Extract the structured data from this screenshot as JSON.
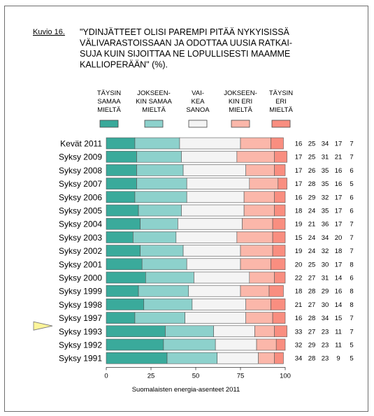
{
  "figure": {
    "label": "Kuvio 16.",
    "title_lines": [
      "\"YDINJÄTTEET OLISI PAREMPI PITÄÄ NYKYISISSÄ",
      "VÄLIVARASTOISSAAN JA ODOTTAA UUSIA RATKAI-",
      "SUJA KUIN SIJOITTAA NE LOPULLISESTI MAAMME",
      "KALLIOPERÄÄN\" (%)."
    ],
    "source": "Suomalaisten energia-asenteet 2011"
  },
  "chart_data": {
    "type": "bar",
    "orientation": "horizontal",
    "stacked": true,
    "categories": [
      "Kevät 2011",
      "Syksy 2009",
      "Syksy 2008",
      "Syksy 2007",
      "Syksy 2006",
      "Syksy 2005",
      "Syksy 2004",
      "Syksy 2003",
      "Syksy 2002",
      "Syksy 2001",
      "Syksy 2000",
      "Syksy 1999",
      "Syksy 1998",
      "Syksy 1997",
      "Syksy 1993",
      "Syksy 1992",
      "Syksy 1991"
    ],
    "legend": [
      {
        "lines": [
          "TÄYSIN",
          "SAMAA",
          "MIELTÄ"
        ],
        "color": "#3aaa9b"
      },
      {
        "lines": [
          "JOKSEEN-",
          "KIN SAMAA",
          "MIELTÄ"
        ],
        "color": "#8dd1cc"
      },
      {
        "lines": [
          "VAI-",
          "KEA",
          "SANOA"
        ],
        "color": "#f4f4f4"
      },
      {
        "lines": [
          "JOKSEEN-",
          "KIN ERI",
          "MIELTÄ"
        ],
        "color": "#fbb7aa"
      },
      {
        "lines": [
          "TÄYSIN",
          "ERI",
          "MIELTÄ"
        ],
        "color": "#f98e80"
      }
    ],
    "series": [
      {
        "values": [
          16,
          17,
          17,
          17,
          16,
          18,
          19,
          15,
          19,
          20,
          22,
          18,
          21,
          16,
          33,
          32,
          34
        ]
      },
      {
        "values": [
          25,
          25,
          26,
          28,
          29,
          24,
          21,
          24,
          24,
          25,
          27,
          28,
          27,
          28,
          27,
          29,
          28
        ]
      },
      {
        "values": [
          34,
          31,
          35,
          35,
          32,
          35,
          36,
          34,
          32,
          30,
          31,
          29,
          30,
          34,
          23,
          23,
          23
        ]
      },
      {
        "values": [
          17,
          21,
          16,
          16,
          17,
          17,
          17,
          20,
          18,
          17,
          14,
          16,
          14,
          15,
          11,
          11,
          9
        ]
      },
      {
        "values": [
          7,
          7,
          6,
          5,
          6,
          6,
          7,
          7,
          7,
          8,
          6,
          8,
          8,
          7,
          7,
          5,
          5
        ]
      }
    ],
    "xlim": [
      0,
      100
    ],
    "xticks": [
      0,
      25,
      50,
      75,
      100
    ],
    "grid": false,
    "marker_row": "Syksy 1993"
  }
}
